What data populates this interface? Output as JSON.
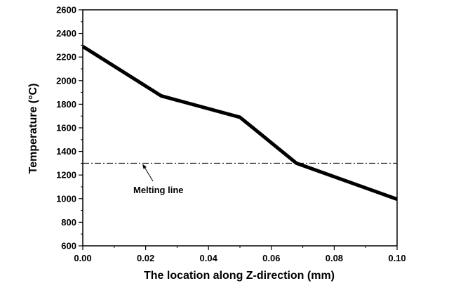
{
  "chart_data": {
    "type": "line",
    "xlabel": "The location along Z-direction (mm)",
    "ylabel": "Temperature (°C)",
    "xlim": [
      0.0,
      0.1
    ],
    "ylim": [
      600,
      2600
    ],
    "x_ticks": [
      "0.00",
      "0.02",
      "0.04",
      "0.06",
      "0.08",
      "0.10"
    ],
    "y_ticks": [
      "600",
      "800",
      "1000",
      "1200",
      "1400",
      "1600",
      "1800",
      "2000",
      "2200",
      "2400",
      "2600"
    ],
    "series": [
      {
        "color": "#000000",
        "x": [
          0.0,
          0.025,
          0.05,
          0.068,
          0.1
        ],
        "y": [
          2290,
          1870,
          1690,
          1300,
          995
        ]
      }
    ],
    "reference_line": {
      "y": 1300,
      "style": "dash-dot",
      "label": "Melting line"
    },
    "grid": false,
    "legend": "none"
  }
}
